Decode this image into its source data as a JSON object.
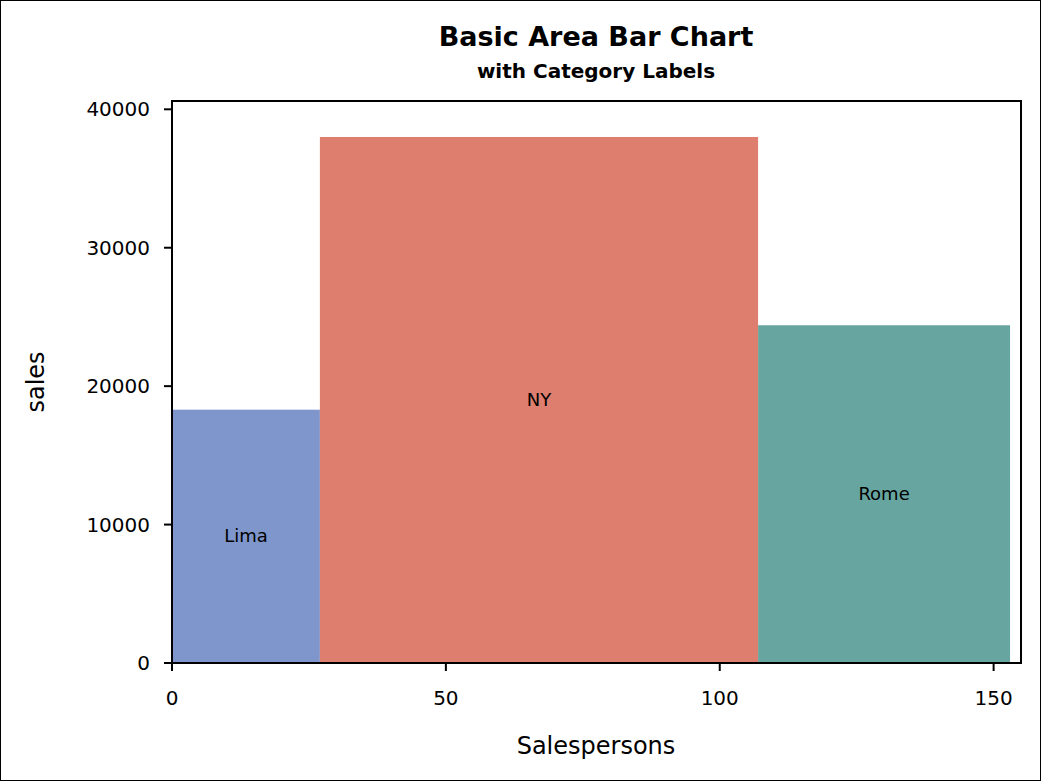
{
  "chart_data": {
    "type": "bar",
    "title": "Basic Area Bar Chart",
    "subtitle": "with Category Labels",
    "x_label": "Salespersons",
    "y_label": "sales",
    "categories": [
      "Lima",
      "NY",
      "Rome"
    ],
    "values": [
      18300,
      38000,
      24400
    ],
    "widths": [
      27,
      80,
      46
    ],
    "colors": [
      "#7f96cc",
      "#de7e6f",
      "#67a6a0"
    ],
    "xlim": [
      0,
      155
    ],
    "xticks": [
      0,
      50,
      100,
      150
    ],
    "ylim": [
      0,
      40600
    ],
    "yticks": [
      0,
      10000,
      20000,
      30000,
      40000
    ],
    "grid": false
  }
}
